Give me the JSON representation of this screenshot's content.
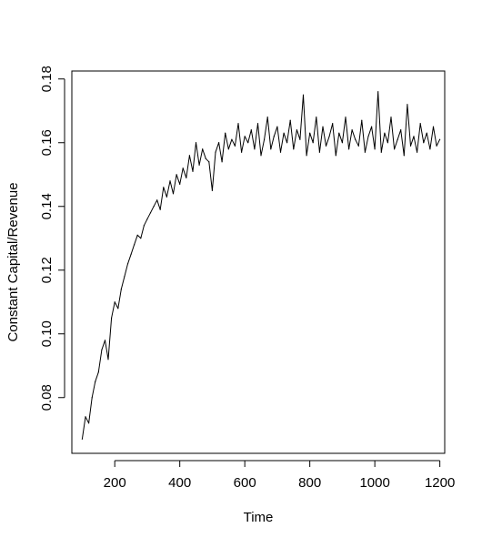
{
  "chart_data": {
    "type": "line",
    "title": "",
    "xlabel": "Time",
    "ylabel": "Constant Capital/Revenue",
    "xlim": [
      68,
      1215
    ],
    "ylim": [
      0.0625,
      0.1825
    ],
    "x_ticks": [
      200,
      400,
      600,
      800,
      1000,
      1200
    ],
    "y_ticks": [
      0.08,
      0.1,
      0.12,
      0.14,
      0.16,
      0.18
    ],
    "x_tick_labels": [
      "200",
      "400",
      "600",
      "800",
      "1000",
      "1200"
    ],
    "y_tick_labels": [
      "0.08",
      "0.10",
      "0.12",
      "0.14",
      "0.16",
      "0.18"
    ],
    "grid": false,
    "legend": "none",
    "line_color": "#000000",
    "series": [
      {
        "x": [
          100,
          110,
          120,
          130,
          140,
          150,
          160,
          170,
          180,
          190,
          200,
          210,
          220,
          230,
          240,
          250,
          260,
          270,
          280,
          290,
          300,
          310,
          320,
          330,
          340,
          350,
          360,
          370,
          380,
          390,
          400,
          410,
          420,
          430,
          440,
          450,
          460,
          470,
          480,
          490,
          500,
          510,
          520,
          530,
          540,
          550,
          560,
          570,
          580,
          590,
          600,
          610,
          620,
          630,
          640,
          650,
          660,
          670,
          680,
          690,
          700,
          710,
          720,
          730,
          740,
          750,
          760,
          770,
          780,
          790,
          800,
          810,
          820,
          830,
          840,
          850,
          860,
          870,
          880,
          890,
          900,
          910,
          920,
          930,
          940,
          950,
          960,
          970,
          980,
          990,
          1000,
          1010,
          1020,
          1030,
          1040,
          1050,
          1060,
          1070,
          1080,
          1090,
          1100,
          1110,
          1120,
          1130,
          1140,
          1150,
          1160,
          1170,
          1180,
          1190,
          1200
        ],
        "values": [
          0.067,
          0.074,
          0.072,
          0.08,
          0.085,
          0.088,
          0.095,
          0.098,
          0.092,
          0.105,
          0.11,
          0.108,
          0.114,
          0.118,
          0.122,
          0.125,
          0.128,
          0.131,
          0.13,
          0.134,
          0.136,
          0.138,
          0.14,
          0.142,
          0.139,
          0.146,
          0.143,
          0.148,
          0.144,
          0.15,
          0.147,
          0.152,
          0.149,
          0.156,
          0.151,
          0.16,
          0.153,
          0.158,
          0.155,
          0.154,
          0.145,
          0.157,
          0.16,
          0.154,
          0.163,
          0.158,
          0.161,
          0.159,
          0.166,
          0.157,
          0.162,
          0.16,
          0.164,
          0.158,
          0.166,
          0.156,
          0.161,
          0.168,
          0.158,
          0.162,
          0.165,
          0.157,
          0.163,
          0.16,
          0.167,
          0.158,
          0.164,
          0.161,
          0.175,
          0.156,
          0.163,
          0.16,
          0.168,
          0.157,
          0.165,
          0.159,
          0.162,
          0.166,
          0.156,
          0.163,
          0.16,
          0.168,
          0.158,
          0.164,
          0.161,
          0.159,
          0.167,
          0.157,
          0.162,
          0.165,
          0.158,
          0.176,
          0.157,
          0.163,
          0.16,
          0.168,
          0.158,
          0.161,
          0.164,
          0.156,
          0.172,
          0.159,
          0.162,
          0.157,
          0.166,
          0.16,
          0.163,
          0.158,
          0.165,
          0.159,
          0.161
        ]
      }
    ]
  }
}
